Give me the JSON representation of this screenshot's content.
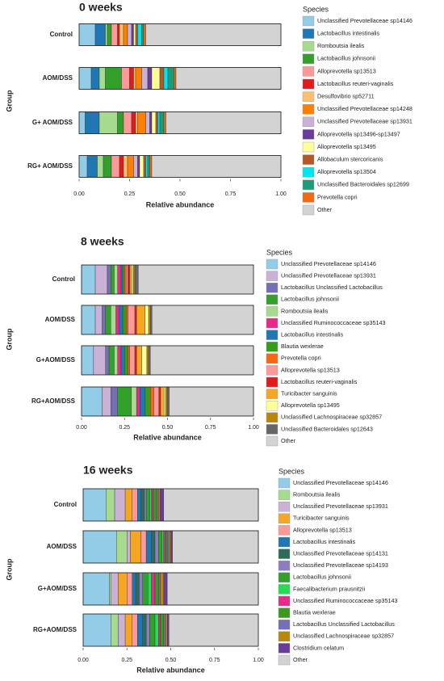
{
  "chart_data": [
    {
      "type": "bar",
      "orientation": "horizontal",
      "stacked": true,
      "title": "0 weeks",
      "xlabel": "Relative abundance",
      "ylabel": "Group",
      "legend_title": "Species",
      "legend": "right",
      "categories": [
        "Control",
        "AOM/DSS",
        "G+ AOM/DSS",
        "RG+ AOM/DSS"
      ],
      "xlim": [
        0,
        1
      ],
      "xticks": [
        {
          "value": 0,
          "label": "0.00"
        },
        0.25,
        {
          "value": 0.5,
          "label": "0.50"
        },
        0.75,
        {
          "value": 1,
          "label": "1.00"
        }
      ],
      "series": [
        {
          "name": "Unclassified Prevotellaceae sp14146",
          "color": "#93cce6",
          "values": [
            0.08,
            0.06,
            0.03,
            0.04
          ]
        },
        {
          "name": "Lactobacillus intestinalis",
          "color": "#1f78b4",
          "values": [
            0.05,
            0.04,
            0.07,
            0.05
          ]
        },
        {
          "name": "Romboutsia ilealis",
          "color": "#a6db8f",
          "values": [
            0.01,
            0.03,
            0.09,
            0.03
          ]
        },
        {
          "name": "Lactobacillus johnsonii",
          "color": "#33a02c",
          "values": [
            0.02,
            0.08,
            0.03,
            0.04
          ]
        },
        {
          "name": "Alloprevotella sp13513",
          "color": "#fb9a99",
          "values": [
            0.03,
            0.04,
            0.04,
            0.04
          ]
        },
        {
          "name": "Lactobacillus reuteri-vaginalis",
          "color": "#e31a1c",
          "values": [
            0.01,
            0.02,
            0.02,
            0.02
          ]
        },
        {
          "name": "Desulfovibrio sp52711",
          "color": "#fdbf6f",
          "values": [
            0.02,
            0.01,
            0.01,
            0.02
          ]
        },
        {
          "name": "Unclassified Prevotellaceae sp14248",
          "color": "#ff7f00",
          "values": [
            0.02,
            0.03,
            0.04,
            0.03
          ]
        },
        {
          "name": "Unclassified Prevotellaceae sp13931",
          "color": "#cab2d6",
          "values": [
            0.02,
            0.03,
            0.02,
            0.02
          ]
        },
        {
          "name": "Alloprevotella sp13496-sp13497",
          "color": "#6a3d9a",
          "values": [
            0.01,
            0.02,
            0.01,
            0.01
          ]
        },
        {
          "name": "Alloprevotella sp13495",
          "color": "#ffff99",
          "values": [
            0.01,
            0.04,
            0.02,
            0.02
          ]
        },
        {
          "name": "Allobaculum stercoricanis",
          "color": "#b15928",
          "values": [
            0.01,
            0.02,
            0.01,
            0.01
          ]
        },
        {
          "name": "Alloprevotella sp13504",
          "color": "#00e5ee",
          "values": [
            0.02,
            0.02,
            0.01,
            0.01
          ]
        },
        {
          "name": "Unclassified Bacteroidales sp12699",
          "color": "#1b9e77",
          "values": [
            0.01,
            0.03,
            0.02,
            0.01
          ]
        },
        {
          "name": "Prevotella copri",
          "color": "#f16913",
          "values": [
            0.01,
            0.01,
            0.01,
            0.01
          ]
        },
        {
          "name": "Other",
          "color": "#d3d3d3",
          "values": [
            0.67,
            0.52,
            0.57,
            0.64
          ]
        }
      ]
    },
    {
      "type": "bar",
      "orientation": "horizontal",
      "stacked": true,
      "title": "8 weeks",
      "xlabel": "Relative abundance",
      "ylabel": "Group",
      "legend_title": "Species",
      "legend": "right",
      "categories": [
        "Control",
        "AOM/DSS",
        "G+AOM/DSS",
        "RG+AOM/DSS"
      ],
      "xlim": [
        0,
        1
      ],
      "xticks": [
        {
          "value": 0,
          "label": "0.00"
        },
        0.25,
        {
          "value": 0.5,
          "label": "0.50"
        },
        0.75,
        {
          "value": 1,
          "label": "1.00"
        }
      ],
      "series": [
        {
          "name": "Unclassified Prevotellaceae sp14146",
          "color": "#93cce6",
          "values": [
            0.08,
            0.08,
            0.07,
            0.12
          ]
        },
        {
          "name": "Unclassified Prevotellaceae sp13931",
          "color": "#cab2d6",
          "values": [
            0.07,
            0.04,
            0.07,
            0.05
          ]
        },
        {
          "name": "Lactobacillus Unclassified Lactobacillus",
          "color": "#7570b3",
          "values": [
            0.02,
            0.02,
            0.02,
            0.04
          ]
        },
        {
          "name": "Lactobacillus johnsonii",
          "color": "#33a02c",
          "values": [
            0.02,
            0.03,
            0.03,
            0.08
          ]
        },
        {
          "name": "Romboutsia ilealis",
          "color": "#a6db8f",
          "values": [
            0.02,
            0.03,
            0.02,
            0.03
          ]
        },
        {
          "name": "Unclassified Ruminococcaceae sp35143",
          "color": "#e7298a",
          "values": [
            0.02,
            0.02,
            0.02,
            0.02
          ]
        },
        {
          "name": "Lactobacillus intestinalis",
          "color": "#1f78b4",
          "values": [
            0.01,
            0.02,
            0.02,
            0.03
          ]
        },
        {
          "name": "Blautia wexlerae",
          "color": "#3a9a1e",
          "values": [
            0.01,
            0.02,
            0.02,
            0.03
          ]
        },
        {
          "name": "Prevotella copri",
          "color": "#f16913",
          "values": [
            0.01,
            0.01,
            0.01,
            0.02
          ]
        },
        {
          "name": "Alloprevotella sp13513",
          "color": "#fb9a99",
          "values": [
            0.01,
            0.04,
            0.03,
            0.03
          ]
        },
        {
          "name": "Lactobacillus reuteri-vaginalis",
          "color": "#e31a1c",
          "values": [
            0.01,
            0.01,
            0.01,
            0.01
          ]
        },
        {
          "name": "Turicibacter sanguinis",
          "color": "#f5a623",
          "values": [
            0.01,
            0.05,
            0.03,
            0.02
          ]
        },
        {
          "name": "Alloprevotella sp13495",
          "color": "#ffff99",
          "values": [
            0.01,
            0.02,
            0.03,
            0.01
          ]
        },
        {
          "name": "Unclassified Lachnospiraceae sp32857",
          "color": "#b8860b",
          "values": [
            0.01,
            0.01,
            0.01,
            0.01
          ]
        },
        {
          "name": "Unclassified Bacteroidales sp12643",
          "color": "#666666",
          "values": [
            0.02,
            0.01,
            0.01,
            0.01
          ]
        },
        {
          "name": "Other",
          "color": "#d3d3d3",
          "values": [
            0.67,
            0.59,
            0.6,
            0.49
          ]
        }
      ]
    },
    {
      "type": "bar",
      "orientation": "horizontal",
      "stacked": true,
      "title": "16 weeks",
      "xlabel": "Relative abundance",
      "ylabel": "Group",
      "legend_title": "Species",
      "legend": "right",
      "categories": [
        "Control",
        "AOM/DSS",
        "G+AOM/DSS",
        "RG+AOM/DSS"
      ],
      "xlim": [
        0,
        1
      ],
      "xticks": [
        {
          "value": 0,
          "label": "0.00"
        },
        0.25,
        {
          "value": 0.5,
          "label": "0.50"
        },
        0.75,
        {
          "value": 1,
          "label": "1.00"
        }
      ],
      "series": [
        {
          "name": "Unclassified Prevotellaceae sp14146",
          "color": "#93cce6",
          "values": [
            0.13,
            0.19,
            0.15,
            0.16
          ]
        },
        {
          "name": "Romboutsia ilealis",
          "color": "#a6db8f",
          "values": [
            0.05,
            0.06,
            0.01,
            0.04
          ]
        },
        {
          "name": "Unclassified Prevotellaceae sp13931",
          "color": "#cab2d6",
          "values": [
            0.06,
            0.02,
            0.04,
            0.04
          ]
        },
        {
          "name": "Turicibacter sanguinis",
          "color": "#f5a623",
          "values": [
            0.04,
            0.06,
            0.05,
            0.04
          ]
        },
        {
          "name": "Alloprevotella sp13513",
          "color": "#fb9a99",
          "values": [
            0.03,
            0.03,
            0.03,
            0.03
          ]
        },
        {
          "name": "Lactobacillus intestinalis",
          "color": "#1f78b4",
          "values": [
            0.02,
            0.03,
            0.02,
            0.03
          ]
        },
        {
          "name": "Unclassified Prevotellaceae sp14131",
          "color": "#2f6b5a",
          "values": [
            0.02,
            0.02,
            0.02,
            0.02
          ]
        },
        {
          "name": "Unclassified Prevotellaceae sp14193",
          "color": "#8e7cc3",
          "values": [
            0.01,
            0.02,
            0.02,
            0.02
          ]
        },
        {
          "name": "Lactobacillus johnsonii",
          "color": "#33a02c",
          "values": [
            0.02,
            0.02,
            0.03,
            0.03
          ]
        },
        {
          "name": "Faecalibacterium prausnitzii",
          "color": "#22dd55",
          "values": [
            0.01,
            0.01,
            0.02,
            0.02
          ]
        },
        {
          "name": "Unclassified Ruminococcaceae sp35143",
          "color": "#e7298a",
          "values": [
            0.01,
            0.01,
            0.02,
            0.01
          ]
        },
        {
          "name": "Blautia wexlerae",
          "color": "#3a9a1e",
          "values": [
            0.02,
            0.01,
            0.02,
            0.02
          ]
        },
        {
          "name": "Lactobacillus Unclassified Lactobacillus",
          "color": "#7570b3",
          "values": [
            0.01,
            0.01,
            0.01,
            0.01
          ]
        },
        {
          "name": "Unclassified Lachnospiraceae sp32857",
          "color": "#b8860b",
          "values": [
            0.01,
            0.01,
            0.02,
            0.01
          ]
        },
        {
          "name": "Clostridium celatum",
          "color": "#6a3d9a",
          "values": [
            0.02,
            0.01,
            0.02,
            0.01
          ]
        },
        {
          "name": "Other",
          "color": "#d3d3d3",
          "values": [
            0.54,
            0.49,
            0.52,
            0.51
          ]
        }
      ]
    }
  ]
}
